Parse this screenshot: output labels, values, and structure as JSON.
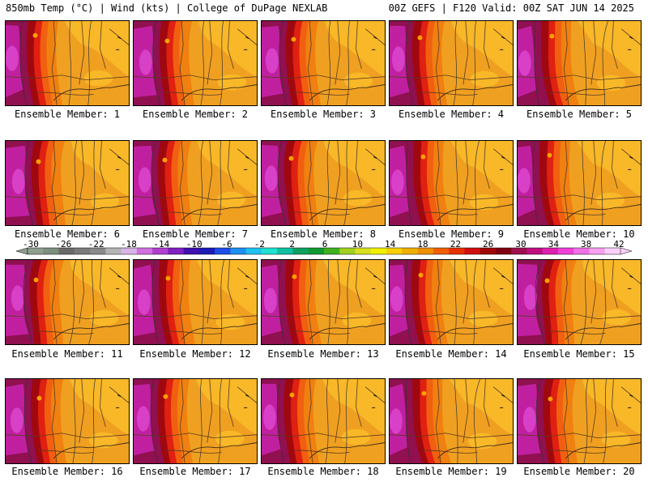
{
  "header": {
    "left": "850mb Temp (°C) | Wind (kts) | College of DuPage NEXLAB",
    "right": "00Z GEFS | F120 Valid: 00Z SAT JUN 14 2025"
  },
  "members": [
    "Ensemble Member: 1",
    "Ensemble Member: 2",
    "Ensemble Member: 3",
    "Ensemble Member: 4",
    "Ensemble Member: 5",
    "Ensemble Member: 6",
    "Ensemble Member: 7",
    "Ensemble Member: 8",
    "Ensemble Member: 9",
    "Ensemble Member: 10",
    "Ensemble Member: 11",
    "Ensemble Member: 12",
    "Ensemble Member: 13",
    "Ensemble Member: 14",
    "Ensemble Member: 15",
    "Ensemble Member: 16",
    "Ensemble Member: 17",
    "Ensemble Member: 18",
    "Ensemble Member: 19",
    "Ensemble Member: 20"
  ],
  "colorbar": {
    "labels": [
      "-30",
      "-26",
      "-22",
      "-18",
      "-14",
      "-10",
      "-6",
      "-2",
      "2",
      "6",
      "10",
      "14",
      "18",
      "22",
      "26",
      "30",
      "34",
      "38",
      "42"
    ],
    "colors": [
      "#8fa08f",
      "#7f8f7f",
      "#6a6a6a",
      "#7a7a7a",
      "#8a8a8a",
      "#b4b4b4",
      "#d8b4e8",
      "#d070e0",
      "#b040d0",
      "#8020c0",
      "#4010b0",
      "#1a1ab4",
      "#1c4ee6",
      "#1e8ef0",
      "#20c0f0",
      "#20e0d0",
      "#10c0a0",
      "#10a060",
      "#109a30",
      "#40b020",
      "#a0d020",
      "#d8e020",
      "#f0f000",
      "#f8d000",
      "#f0b000",
      "#f09000",
      "#f06000",
      "#e83000",
      "#d01010",
      "#a00808",
      "#800010",
      "#a01050",
      "#c01080",
      "#e020b0",
      "#f040d8",
      "#f070e8",
      "#f8a0f0",
      "#fcd0fc"
    ]
  }
}
